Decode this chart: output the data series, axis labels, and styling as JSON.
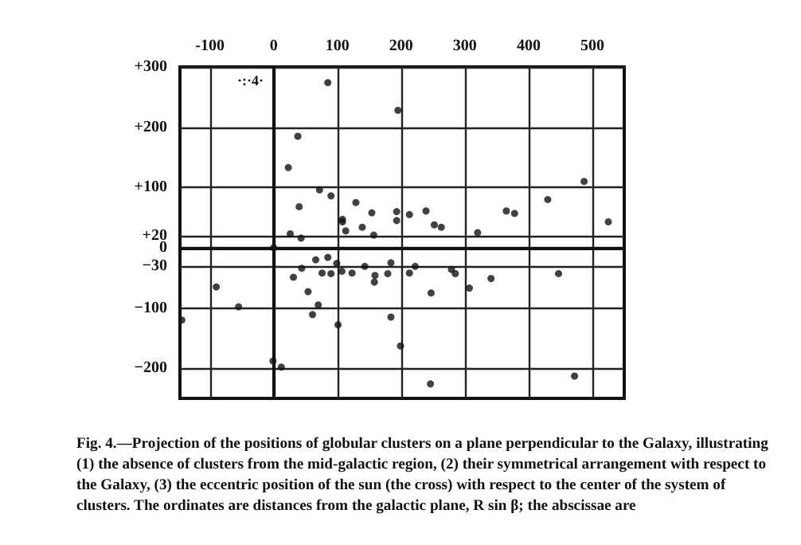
{
  "chart_data": {
    "type": "scatter",
    "color": "#111111",
    "marker": "circle",
    "grid": true,
    "xlim": [
      -147,
      550
    ],
    "ylim": [
      -250,
      300
    ],
    "xticks": [
      -100,
      0,
      100,
      200,
      300,
      400,
      500
    ],
    "yticks": [
      {
        "value": 300,
        "label": "+300"
      },
      {
        "value": 200,
        "label": "+200"
      },
      {
        "value": 100,
        "label": "+100"
      },
      {
        "value": 20,
        "label": "+20"
      },
      0,
      {
        "value": -30,
        "label": "−30"
      },
      {
        "value": -100,
        "label": "−100"
      },
      {
        "value": -200,
        "label": "−200"
      }
    ],
    "x": [
      85,
      195,
      38,
      23,
      72,
      90,
      487,
      430,
      129,
      40,
      108,
      108,
      154,
      193,
      213,
      239,
      193,
      139,
      113,
      252,
      263,
      365,
      378,
      525,
      26,
      43,
      157,
      320,
      0,
      85,
      66,
      99,
      184,
      44,
      76,
      90,
      107,
      123,
      143,
      159,
      158,
      179,
      213,
      222,
      31,
      279,
      285,
      341,
      307,
      247,
      447,
      -90,
      54,
      -55,
      70,
      61,
      -144,
      184,
      101,
      199,
      -1,
      12,
      246,
      472
    ],
    "values": [
      274,
      228,
      185,
      133,
      96,
      86,
      110,
      80,
      75,
      68,
      47,
      43,
      58,
      60,
      55,
      61,
      45,
      34,
      28,
      38,
      34,
      61,
      57,
      43,
      23,
      16,
      21,
      25,
      0,
      -16,
      -20,
      -26,
      -25,
      -34,
      -42,
      -43,
      -39,
      -42,
      -31,
      -46,
      -57,
      -43,
      -42,
      -31,
      -49,
      -36,
      -43,
      -51,
      -67,
      -75,
      -43,
      -65,
      -73,
      -98,
      -95,
      -111,
      -120,
      -115,
      -128,
      -163,
      -188,
      -198,
      -226,
      -213
    ],
    "annotations": [
      "·:·4·",
      "Fig. 4.—Projection of the positions of globular clusters on a plane perpendicular to the Galaxy, illustrating (1) the absence of clusters from the mid-galactic region, (2) their symmetrical arrangement with respect to the Galaxy, (3) the eccentric position of the sun (the cross) with respect to the center of the system of clusters. The ordinates are distances from the galactic plane, R sin β; the abscissae are"
    ]
  }
}
